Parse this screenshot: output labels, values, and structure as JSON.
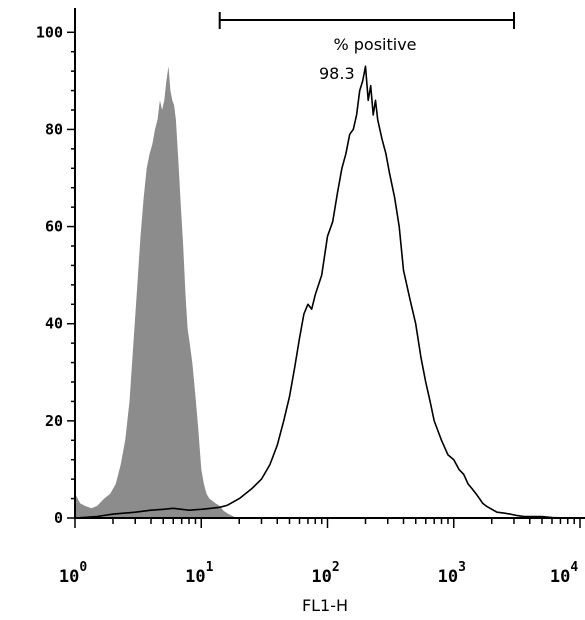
{
  "chart_data": {
    "type": "area",
    "xlabel": "FL1-H",
    "ylabel": "",
    "x_scale": "log",
    "xlim": [
      1,
      10000
    ],
    "ylim": [
      0,
      105
    ],
    "yticks": [
      0,
      20,
      40,
      60,
      80,
      100
    ],
    "yticks_text": [
      "0",
      "20",
      "40",
      "60",
      "80",
      "100"
    ],
    "xticks": [
      {
        "value": 1,
        "base": "10",
        "exp": "0"
      },
      {
        "value": 10,
        "base": "10",
        "exp": "1"
      },
      {
        "value": 100,
        "base": "10",
        "exp": "2"
      },
      {
        "value": 1000,
        "base": "10",
        "exp": "3"
      },
      {
        "value": 10000,
        "base": "10",
        "exp": "4"
      }
    ],
    "grid": false,
    "gate": {
      "label": "% positive",
      "value_text": "98.3",
      "x_range": [
        14,
        3000
      ]
    },
    "colors": {
      "filled_series": "#8c8c8c",
      "line_series": "#000000",
      "axis": "#000000"
    },
    "series": [
      {
        "style": "filled",
        "x": [
          1,
          1.05,
          1.1,
          1.2,
          1.35,
          1.5,
          1.7,
          1.9,
          2.1,
          2.3,
          2.5,
          2.7,
          2.9,
          3.1,
          3.3,
          3.5,
          3.7,
          3.9,
          4.1,
          4.3,
          4.5,
          4.7,
          4.9,
          5.1,
          5.3,
          5.5,
          5.7,
          5.9,
          6.1,
          6.3,
          6.6,
          6.9,
          7.2,
          7.5,
          7.8,
          8.1,
          8.5,
          9,
          9.5,
          10,
          10.5,
          11,
          11.6,
          12.3,
          13,
          14,
          15,
          16.5,
          18,
          20
        ],
        "y": [
          5,
          4,
          3,
          2.5,
          2,
          2.5,
          4,
          5,
          7,
          11,
          16,
          24,
          36,
          47,
          58,
          66,
          72,
          75,
          77,
          80,
          82,
          86,
          84,
          86,
          90,
          93,
          88,
          86,
          85,
          82,
          73,
          64,
          56,
          46,
          39,
          36,
          32,
          25,
          18,
          10,
          7,
          5,
          4,
          3.5,
          3,
          2.5,
          1.5,
          0.8,
          0.3,
          0
        ]
      },
      {
        "style": "line",
        "x": [
          1,
          1.5,
          2,
          3,
          4,
          5,
          6,
          8,
          10,
          12,
          14,
          16,
          20,
          25,
          30,
          35,
          40,
          45,
          50,
          55,
          60,
          65,
          70,
          75,
          80,
          90,
          100,
          110,
          120,
          130,
          140,
          150,
          160,
          170,
          180,
          190,
          200,
          210,
          220,
          230,
          240,
          250,
          270,
          290,
          310,
          340,
          370,
          400,
          450,
          500,
          550,
          600,
          650,
          700,
          800,
          900,
          1000,
          1100,
          1200,
          1300,
          1400,
          1500,
          1600,
          1700,
          1800,
          2000,
          2200,
          2500,
          2800,
          3200,
          3600,
          4200,
          5000,
          6000,
          8000,
          10000
        ],
        "y": [
          0,
          0.3,
          0.8,
          1.2,
          1.6,
          1.8,
          2,
          1.6,
          1.8,
          2,
          2.2,
          2.6,
          4,
          6,
          8,
          11,
          15,
          20,
          25,
          31,
          37,
          42,
          44,
          43,
          46,
          50,
          58,
          61,
          67,
          72,
          75,
          79,
          80,
          83,
          88,
          90,
          93,
          86,
          89,
          83,
          86,
          82,
          78,
          75,
          71,
          66,
          60,
          51,
          45,
          40,
          33,
          28,
          24,
          20,
          16,
          13,
          12,
          10,
          9,
          7,
          6,
          5,
          4,
          3,
          2.5,
          1.8,
          1.2,
          1,
          0.8,
          0.5,
          0.3,
          0.3,
          0.3,
          0.1,
          0,
          0
        ]
      }
    ]
  }
}
